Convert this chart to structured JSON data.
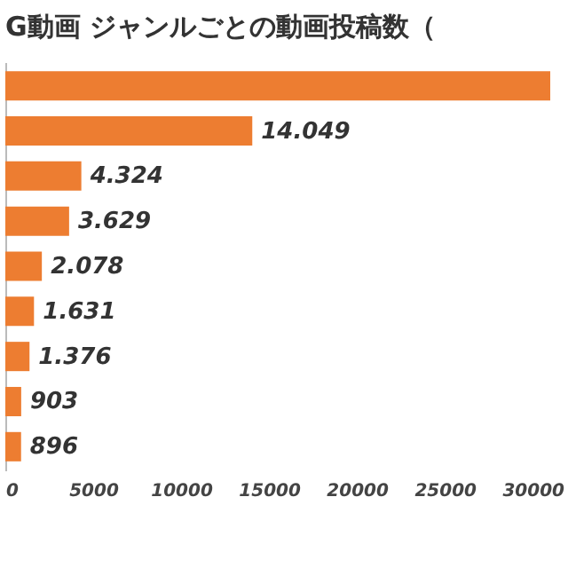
{
  "chart_data": {
    "type": "bar",
    "orientation": "horizontal",
    "title": "G動画 ジャンルごとの動画投稿数（",
    "categories": [
      null,
      null,
      null,
      null,
      null,
      null,
      null,
      null,
      null
    ],
    "values": [
      31000,
      14049,
      4324,
      3629,
      2078,
      1631,
      1376,
      903,
      896
    ],
    "value_labels": [
      null,
      "14.049",
      "4.324",
      "3.629",
      "2.078",
      "1.631",
      "1.376",
      "903",
      "896"
    ],
    "color": "#ed7d31",
    "xlim": [
      0,
      31000
    ],
    "xticks": [
      0,
      5000,
      10000,
      15000,
      20000,
      25000,
      30000
    ],
    "tick_labels": "x",
    "grid": false
  }
}
